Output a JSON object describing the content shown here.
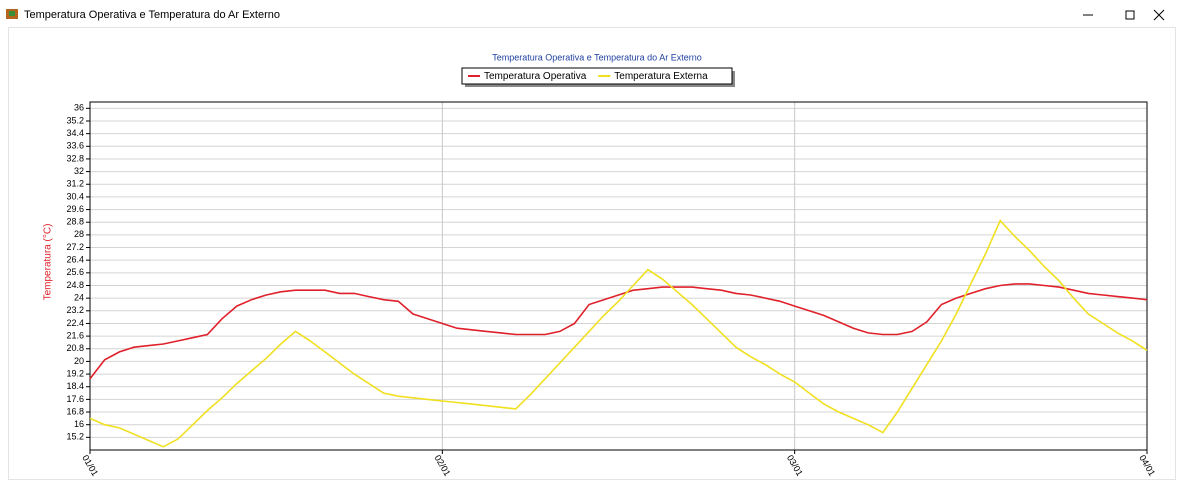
{
  "window_title": "Temperatura Operativa e Temperatura do Ar Externo",
  "chart_data": {
    "type": "line",
    "title": "Temperatura Operativa e Temperatura do Ar Externo",
    "y_label": "Temperatura (°C)",
    "x": [
      0,
      1,
      2,
      3,
      4,
      5,
      6,
      7,
      8,
      9,
      10,
      11,
      12,
      13,
      14,
      15,
      16,
      17,
      18,
      19,
      20,
      21,
      22,
      23,
      24,
      25,
      26,
      27,
      28,
      29,
      30,
      31,
      32,
      33,
      34,
      35,
      36,
      37,
      38,
      39,
      40,
      41,
      42,
      43,
      44,
      45,
      46,
      47,
      48,
      49,
      50,
      51,
      52,
      53,
      54,
      55,
      56,
      57,
      58,
      59,
      60,
      61,
      62,
      63,
      64,
      65,
      66,
      67,
      68,
      69,
      70,
      71,
      72
    ],
    "xlim": [
      0,
      72
    ],
    "xticks": [
      {
        "value": 0,
        "label": "01/01"
      },
      {
        "value": 24,
        "label": "02/01"
      },
      {
        "value": 48,
        "label": "03/01"
      },
      {
        "value": 72,
        "label": "04/01"
      }
    ],
    "ylim": [
      14.4,
      36.4
    ],
    "yticks": [
      15.2,
      16,
      16.8,
      17.6,
      18.4,
      19.2,
      20,
      20.8,
      21.6,
      22.4,
      23.2,
      24,
      24.8,
      25.6,
      26.4,
      27.2,
      28,
      28.8,
      29.6,
      30.4,
      31.2,
      32,
      32.8,
      33.6,
      34.4,
      35.2,
      36
    ],
    "grid": true,
    "legend": "top",
    "series": [
      {
        "name": "Temperatura Operativa",
        "color": "#e0202a",
        "values": [
          18.9,
          20.1,
          20.6,
          20.9,
          21.0,
          21.1,
          21.3,
          21.5,
          21.7,
          22.7,
          23.5,
          23.9,
          24.2,
          24.4,
          24.5,
          24.5,
          24.5,
          24.3,
          24.3,
          24.1,
          23.9,
          23.8,
          23.0,
          22.7,
          22.4,
          22.1,
          22.0,
          21.9,
          21.8,
          21.7,
          21.7,
          21.7,
          21.9,
          22.4,
          23.6,
          23.9,
          24.2,
          24.5,
          24.6,
          24.7,
          24.7,
          24.7,
          24.6,
          24.5,
          24.3,
          24.2,
          24.0,
          23.8,
          23.5,
          23.2,
          22.9,
          22.5,
          22.1,
          21.8,
          21.7,
          21.7,
          21.9,
          22.5,
          23.6,
          24.0,
          24.3,
          24.6,
          24.8,
          24.9,
          24.9,
          24.8,
          24.7,
          24.5,
          24.3,
          24.2,
          24.1,
          24.0,
          23.9
        ]
      },
      {
        "name": "Temperatura Externa",
        "color": "#f0e020",
        "values": [
          16.4,
          16.0,
          15.8,
          15.4,
          15.0,
          14.6,
          15.1,
          16.0,
          16.9,
          17.7,
          18.6,
          19.4,
          20.2,
          21.1,
          21.9,
          21.3,
          20.6,
          19.9,
          19.2,
          18.6,
          18.0,
          17.8,
          17.7,
          17.6,
          17.5,
          17.4,
          17.3,
          17.2,
          17.1,
          17.0,
          17.9,
          18.9,
          19.9,
          20.9,
          21.9,
          22.9,
          23.8,
          24.8,
          25.8,
          25.2,
          24.4,
          23.6,
          22.7,
          21.8,
          20.9,
          20.3,
          19.8,
          19.2,
          18.7,
          18.0,
          17.3,
          16.8,
          16.4,
          16.0,
          15.5,
          16.8,
          18.3,
          19.8,
          21.3,
          23.0,
          24.9,
          26.8,
          28.9,
          27.9,
          27.0,
          26.0,
          25.1,
          24.0,
          23.0,
          22.4,
          21.8,
          21.3,
          20.7
        ]
      }
    ]
  }
}
